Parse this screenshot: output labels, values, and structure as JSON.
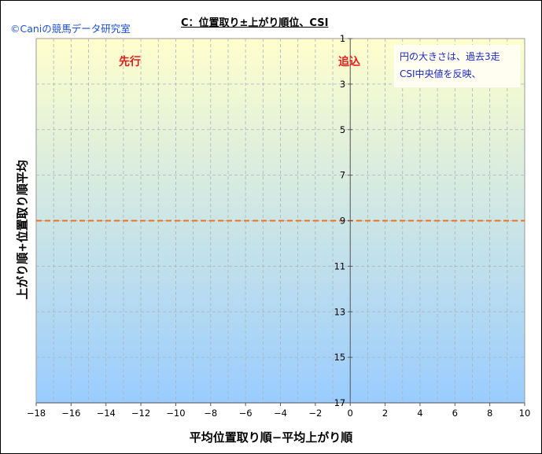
{
  "copyright": "©Caniの競馬データ研究室",
  "chart_data": {
    "type": "scatter",
    "title": "C：位置取り±上がり順位、CSI",
    "xlabel": "平均位置取り順−平均上がり順",
    "ylabel": "上がり順+位置取り順平均",
    "xlim": [
      -18,
      10
    ],
    "ylim": [
      1,
      17
    ],
    "y_reversed": true,
    "x_ticks": [
      "−18",
      "−16",
      "−14",
      "−12",
      "−10",
      "−8",
      "−6",
      "−4",
      "−2",
      "0",
      "2",
      "4",
      "6",
      "8",
      "10"
    ],
    "y_ticks": [
      "1",
      "3",
      "5",
      "7",
      "9",
      "11",
      "13",
      "15",
      "17"
    ],
    "grid": true,
    "reference_line": {
      "axis": "y",
      "value": 9,
      "style": "dashed",
      "color": "#f07020"
    },
    "points": [],
    "annotations": {
      "left_quadrant": "先行",
      "right_quadrant": "追込",
      "note_line1": "円の大きさは、過去3走",
      "note_line2": "CSI中央値を反映、"
    },
    "colors": {
      "background_top": "#ffffcc",
      "background_bottom": "#99ccff",
      "quadrant_label": "#e8191a",
      "note_text": "#1a28c8",
      "copyright_text": "#1a4fd6"
    }
  }
}
